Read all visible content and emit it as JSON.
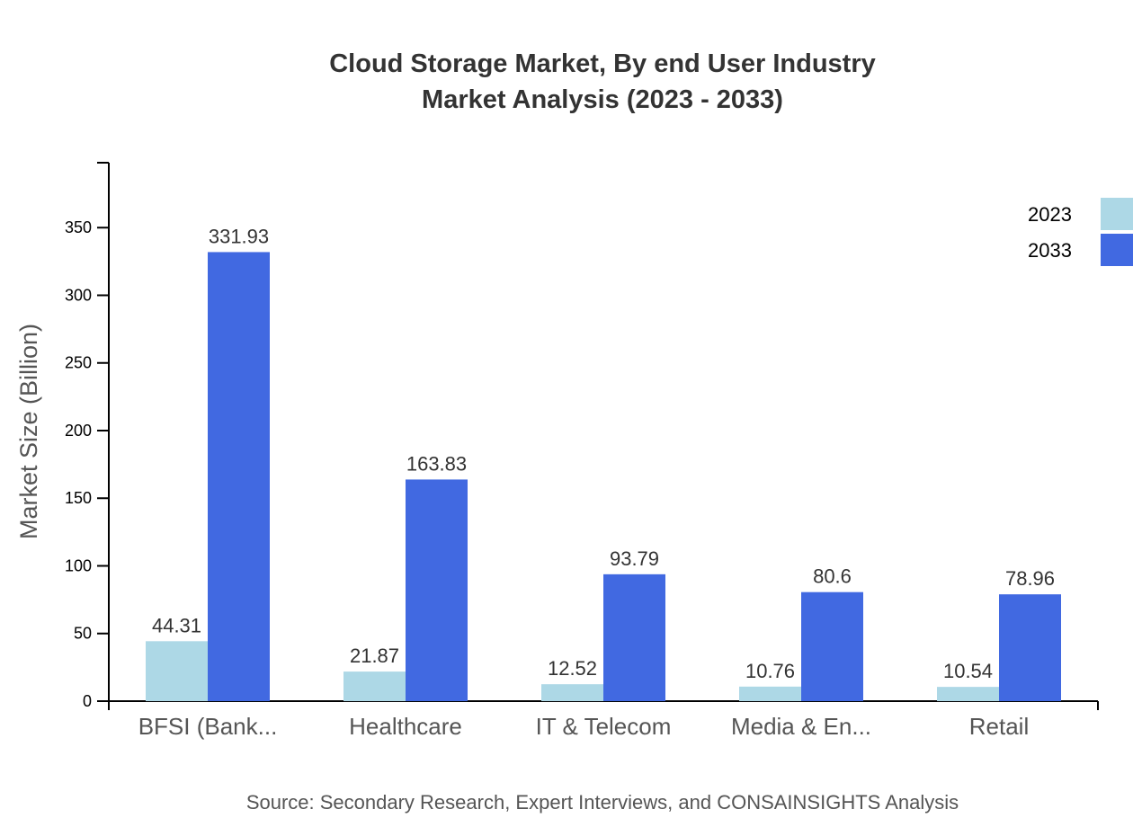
{
  "chart_data": {
    "type": "bar",
    "title": "Cloud Storage Market, By end User Industry",
    "subtitle": "Market Analysis (2023 - 2033)",
    "xlabel": "",
    "ylabel": "Market Size (Billion)",
    "ylim": [
      0,
      398
    ],
    "yticks": [
      0,
      50,
      100,
      150,
      200,
      250,
      300,
      350
    ],
    "grid": false,
    "legend_placement": "top-right",
    "categories": [
      "BFSI (Bank...",
      "Healthcare",
      "IT & Telecom",
      "Media & En...",
      "Retail"
    ],
    "series": [
      {
        "name": "2023",
        "color": "#add8e6",
        "values": [
          44.31,
          21.87,
          12.52,
          10.76,
          10.54
        ]
      },
      {
        "name": "2033",
        "color": "#4169e1",
        "values": [
          331.93,
          163.83,
          93.79,
          80.6,
          78.96
        ]
      }
    ],
    "source": "Source: Secondary Research, Expert Interviews, and CONSAINSIGHTS Analysis"
  }
}
